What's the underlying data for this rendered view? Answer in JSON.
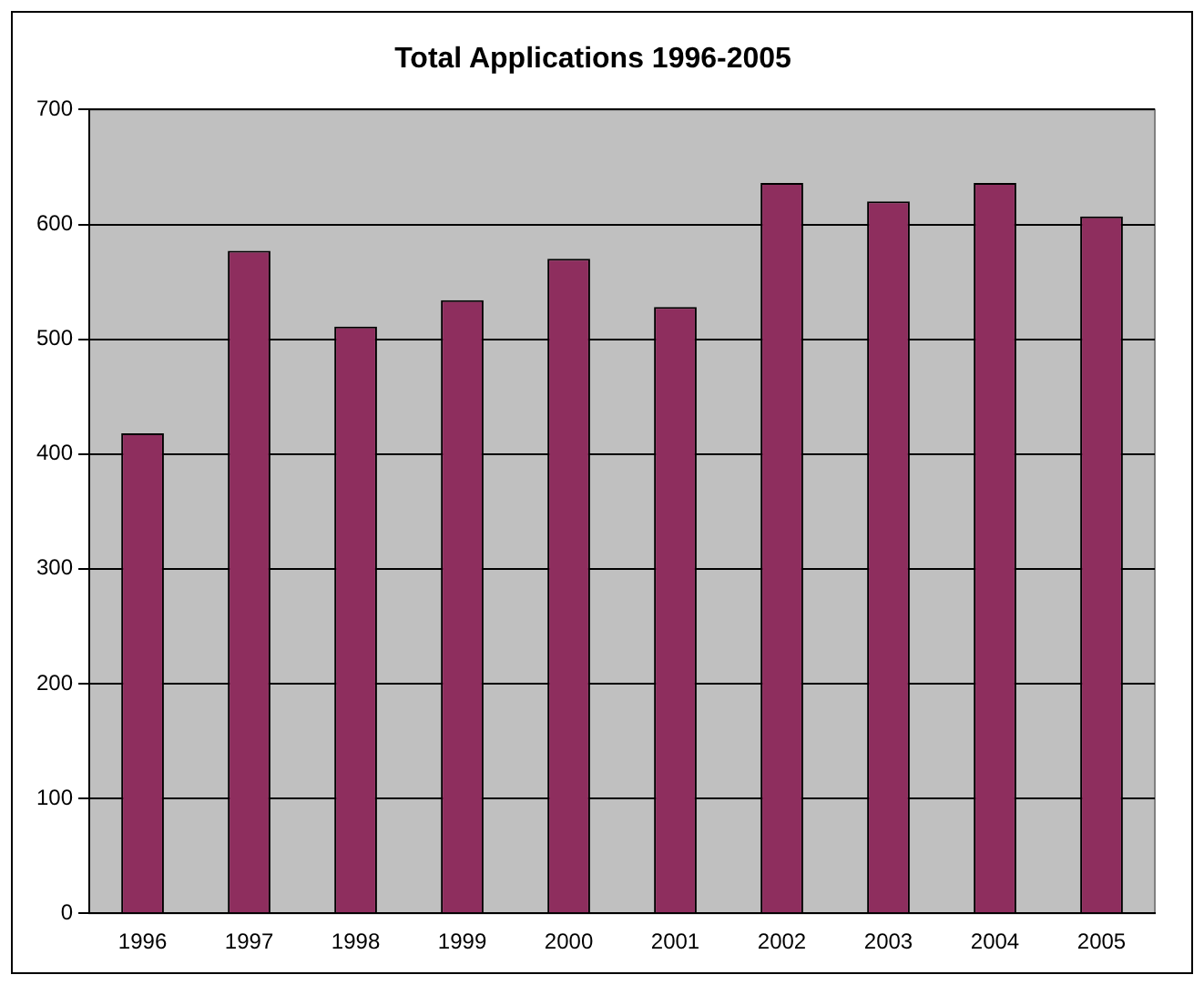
{
  "chart_data": {
    "type": "bar",
    "title": "Total Applications 1996-2005",
    "categories": [
      "1996",
      "1997",
      "1998",
      "1999",
      "2000",
      "2001",
      "2002",
      "2003",
      "2004",
      "2005"
    ],
    "values": [
      418,
      577,
      511,
      534,
      570,
      528,
      636,
      620,
      636,
      607
    ],
    "color": "#8e2e5e",
    "ylim": [
      0,
      700
    ],
    "yticks": [
      0,
      100,
      200,
      300,
      400,
      500,
      600,
      700
    ],
    "grid": "y"
  }
}
